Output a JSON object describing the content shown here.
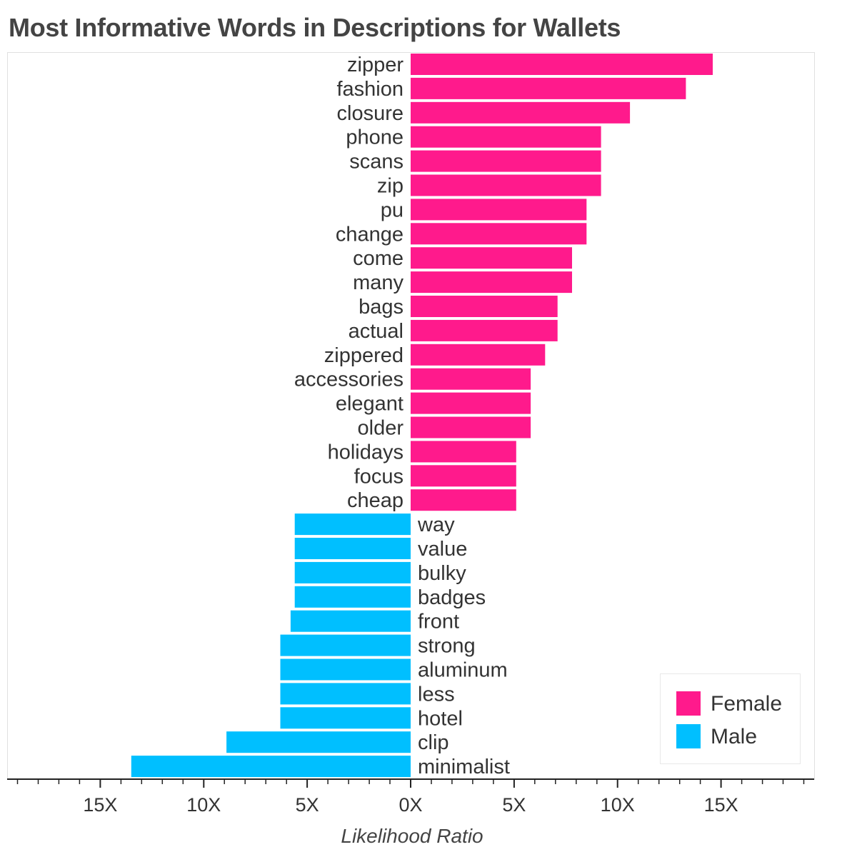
{
  "chart_data": {
    "type": "bar",
    "orientation": "horizontal",
    "title": "Most Informative Words in Descriptions for Wallets",
    "xlabel": "Likelihood Ratio",
    "xlim": [
      -19.5,
      19.5
    ],
    "x_ticks": [
      -15,
      -10,
      -5,
      0,
      5,
      10,
      15
    ],
    "x_tick_labels": [
      "15X",
      "10X",
      "5X",
      "0X",
      "5X",
      "10X",
      "15X"
    ],
    "grid": false,
    "legend_position": "bottom-right",
    "series": [
      {
        "name": "Female",
        "color": "#ff1a8c",
        "categories": [
          "zipper",
          "fashion",
          "closure",
          "phone",
          "scans",
          "zip",
          "pu",
          "change",
          "come",
          "many",
          "bags",
          "actual",
          "zippered",
          "accessories",
          "elegant",
          "older",
          "holidays",
          "focus",
          "cheap"
        ],
        "values": [
          14.6,
          13.3,
          10.6,
          9.2,
          9.2,
          9.2,
          8.5,
          8.5,
          7.8,
          7.8,
          7.1,
          7.1,
          6.5,
          5.8,
          5.8,
          5.8,
          5.1,
          5.1,
          5.1
        ]
      },
      {
        "name": "Male",
        "color": "#00bfff",
        "categories": [
          "way",
          "value",
          "bulky",
          "badges",
          "front",
          "strong",
          "aluminum",
          "less",
          "hotel",
          "clip",
          "minimalist"
        ],
        "values": [
          5.6,
          5.6,
          5.6,
          5.6,
          5.8,
          6.3,
          6.3,
          6.3,
          6.3,
          8.9,
          13.5
        ]
      }
    ]
  }
}
